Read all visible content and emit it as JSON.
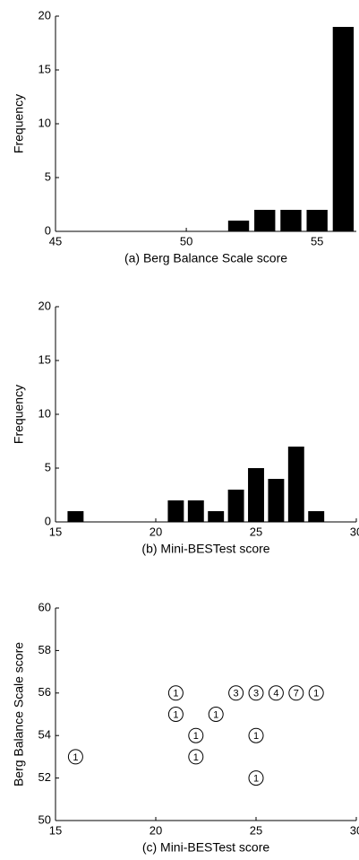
{
  "chart_data": [
    {
      "type": "bar",
      "xlabel": "(a) Berg Balance Scale score",
      "ylabel": "Frequency",
      "x": [
        52,
        53,
        54,
        55,
        56
      ],
      "values": [
        1,
        2,
        2,
        2,
        19
      ],
      "color": "#000000",
      "xlim": [
        45,
        56.5
      ],
      "xticks": [
        45,
        50,
        55
      ],
      "ylim": [
        0,
        20
      ],
      "yticks": [
        0,
        5,
        10,
        15,
        20
      ]
    },
    {
      "type": "bar",
      "xlabel": "(b) Mini-BESTest score",
      "ylabel": "Frequency",
      "x": [
        16,
        21,
        22,
        23,
        24,
        25,
        26,
        27,
        28
      ],
      "values": [
        1,
        2,
        2,
        1,
        3,
        5,
        4,
        7,
        1
      ],
      "color": "#000000",
      "xlim": [
        15,
        30
      ],
      "xticks": [
        15,
        20,
        25,
        30
      ],
      "ylim": [
        0,
        20
      ],
      "yticks": [
        0,
        5,
        10,
        15,
        20
      ]
    },
    {
      "type": "scatter",
      "xlabel": "(c) Mini-BESTest score",
      "ylabel": "Berg Balance Scale score",
      "x": [
        16,
        21,
        21,
        22,
        22,
        23,
        24,
        25,
        26,
        27,
        28,
        25,
        25
      ],
      "values": [
        53,
        56,
        55,
        54,
        53,
        55,
        56,
        56,
        56,
        56,
        56,
        54,
        52
      ],
      "counts": [
        1,
        1,
        1,
        1,
        1,
        1,
        3,
        3,
        4,
        7,
        1,
        1,
        1
      ],
      "color": "#000000",
      "xlim": [
        15,
        30
      ],
      "xticks": [
        15,
        20,
        25,
        30
      ],
      "ylim": [
        50,
        60
      ],
      "yticks": [
        50,
        52,
        54,
        56,
        58,
        60
      ]
    }
  ]
}
